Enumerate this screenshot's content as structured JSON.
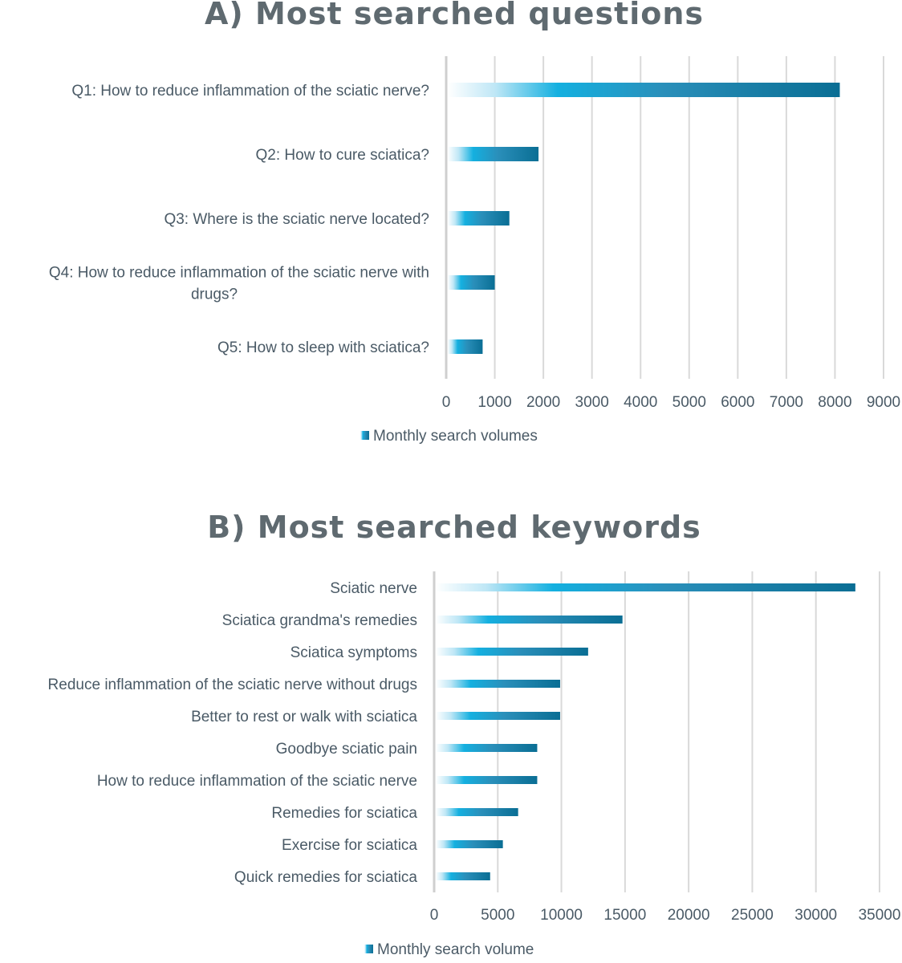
{
  "chart_data": [
    {
      "type": "bar",
      "orientation": "horizontal",
      "title": "A) Most searched questions",
      "categories": [
        "Q1: How to reduce inflammation of the sciatic nerve?",
        "Q2: How to cure sciatica?",
        "Q3: Where is the sciatic nerve located?",
        "Q4: How to reduce inflammation of the sciatic nerve with drugs?",
        "Q5: How to sleep with sciatica?"
      ],
      "category_lines": [
        [
          "Q1: How to reduce inflammation of the sciatic nerve?"
        ],
        [
          "Q2: How to cure sciatica?"
        ],
        [
          "Q3: Where is the sciatic nerve located?"
        ],
        [
          "Q4: How to reduce inflammation of the sciatic nerve with",
          "drugs?"
        ],
        [
          "Q5: How to sleep with sciatica?"
        ]
      ],
      "series": [
        {
          "name": "Monthly search volumes",
          "values": [
            8100,
            1900,
            1300,
            1000,
            750
          ]
        }
      ],
      "xlim": [
        0,
        9000
      ],
      "ticks": [
        0,
        1000,
        2000,
        3000,
        4000,
        5000,
        6000,
        7000,
        8000,
        9000
      ],
      "tick_labels": [
        "0",
        "1000",
        "2000",
        "3000",
        "4000",
        "5000",
        "6000",
        "7000",
        "8000",
        "9000"
      ],
      "grid": true,
      "legend": "bottom"
    },
    {
      "type": "bar",
      "orientation": "horizontal",
      "title": "B) Most searched keywords",
      "categories": [
        "Sciatic nerve",
        "Sciatica grandma's remedies",
        "Sciatica symptoms",
        "Reduce inflammation of the sciatic nerve without drugs",
        "Better to rest or walk with sciatica",
        "Goodbye sciatic pain",
        "How to reduce inflammation of the sciatic nerve",
        "Remedies for sciatica",
        "Exercise for sciatica",
        "Quick remedies for sciatica"
      ],
      "category_lines": [
        [
          "Sciatic nerve"
        ],
        [
          "Sciatica grandma's remedies"
        ],
        [
          "Sciatica symptoms"
        ],
        [
          "Reduce inflammation of the sciatic nerve without drugs"
        ],
        [
          "Better to rest or walk with sciatica"
        ],
        [
          "Goodbye sciatic pain"
        ],
        [
          "How to reduce inflammation of the sciatic nerve"
        ],
        [
          "Remedies for sciatica"
        ],
        [
          "Exercise for sciatica"
        ],
        [
          "Quick remedies for sciatica"
        ]
      ],
      "series": [
        {
          "name": "Monthly search volume",
          "values": [
            33100,
            14800,
            12100,
            9900,
            9900,
            8100,
            8100,
            6600,
            5400,
            4400
          ]
        }
      ],
      "xlim": [
        0,
        35000
      ],
      "ticks": [
        0,
        5000,
        10000,
        15000,
        20000,
        25000,
        30000,
        35000
      ],
      "tick_labels": [
        "0",
        "5000",
        "10000",
        "15000",
        "20000",
        "25000",
        "30000",
        "35000"
      ],
      "grid": true,
      "legend": "bottom"
    }
  ],
  "colors": {
    "bar_light": "#ffffff",
    "bar_mid": "#14b0e0",
    "bar_dark": "#0a6e94",
    "text": "#4a5a66",
    "title": "#5f6a70",
    "grid": "#d9d9d9"
  }
}
